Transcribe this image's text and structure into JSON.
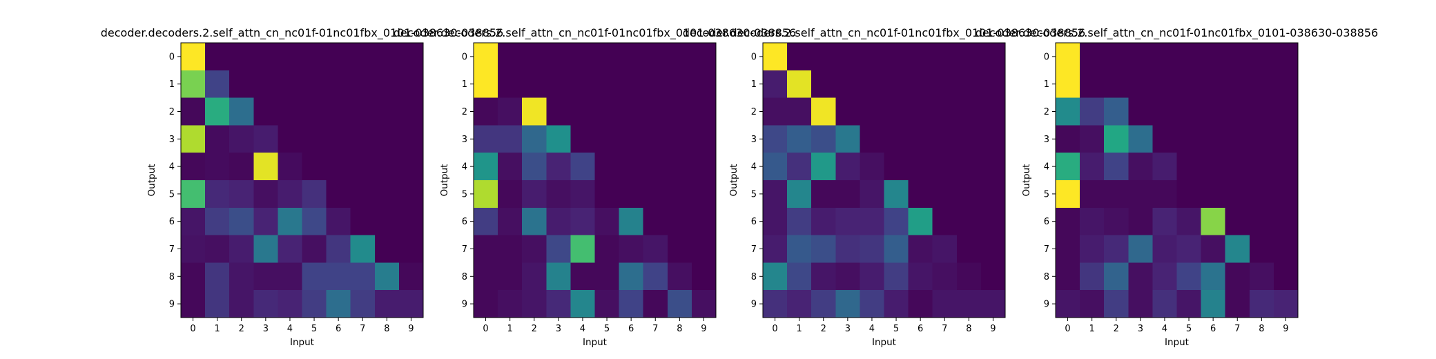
{
  "figure": {
    "background": "#ffffff"
  },
  "chart_data": [
    {
      "type": "heatmap",
      "title": "decoder.decoders.2.self_attn_cn_nc01f-01nc01fbx_0101-038630-038856",
      "xlabel": "Input",
      "ylabel": "Output",
      "x_ticks": [
        "0",
        "1",
        "2",
        "3",
        "4",
        "5",
        "6",
        "7",
        "8",
        "9"
      ],
      "y_ticks": [
        "0",
        "1",
        "2",
        "3",
        "4",
        "5",
        "6",
        "7",
        "8",
        "9"
      ],
      "colormap": "viridis",
      "values": [
        [
          1.0,
          0.0,
          0.0,
          0.0,
          0.0,
          0.0,
          0.0,
          0.0,
          0.0,
          0.0
        ],
        [
          0.8,
          0.2,
          0.0,
          0.0,
          0.0,
          0.0,
          0.0,
          0.0,
          0.0,
          0.0
        ],
        [
          0.02,
          0.62,
          0.36,
          0.0,
          0.0,
          0.0,
          0.0,
          0.0,
          0.0,
          0.0
        ],
        [
          0.88,
          0.03,
          0.06,
          0.08,
          0.0,
          0.0,
          0.0,
          0.0,
          0.0,
          0.0
        ],
        [
          0.02,
          0.03,
          0.02,
          0.96,
          0.03,
          0.0,
          0.0,
          0.0,
          0.0,
          0.0
        ],
        [
          0.7,
          0.12,
          0.1,
          0.04,
          0.08,
          0.14,
          0.0,
          0.0,
          0.0,
          0.0
        ],
        [
          0.06,
          0.18,
          0.24,
          0.1,
          0.4,
          0.22,
          0.06,
          0.0,
          0.0,
          0.0
        ],
        [
          0.05,
          0.04,
          0.08,
          0.4,
          0.1,
          0.04,
          0.16,
          0.48,
          0.0,
          0.0
        ],
        [
          0.02,
          0.16,
          0.06,
          0.04,
          0.04,
          0.2,
          0.2,
          0.2,
          0.42,
          0.02
        ],
        [
          0.02,
          0.16,
          0.06,
          0.12,
          0.1,
          0.18,
          0.36,
          0.18,
          0.08,
          0.08
        ]
      ]
    },
    {
      "type": "heatmap",
      "title": "decoder.decoders.2.self_attn_cn_nc01f-01nc01fbx_0101-038630-038856",
      "xlabel": "Input",
      "ylabel": "Output",
      "x_ticks": [
        "0",
        "1",
        "2",
        "3",
        "4",
        "5",
        "6",
        "7",
        "8",
        "9"
      ],
      "y_ticks": [
        "0",
        "1",
        "2",
        "3",
        "4",
        "5",
        "6",
        "7",
        "8",
        "9"
      ],
      "colormap": "viridis",
      "values": [
        [
          1.0,
          0.0,
          0.0,
          0.0,
          0.0,
          0.0,
          0.0,
          0.0,
          0.0,
          0.0
        ],
        [
          1.0,
          0.0,
          0.0,
          0.0,
          0.0,
          0.0,
          0.0,
          0.0,
          0.0,
          0.0
        ],
        [
          0.02,
          0.04,
          0.98,
          0.0,
          0.0,
          0.0,
          0.0,
          0.0,
          0.0,
          0.0
        ],
        [
          0.16,
          0.16,
          0.34,
          0.5,
          0.0,
          0.0,
          0.0,
          0.0,
          0.0,
          0.0
        ],
        [
          0.52,
          0.04,
          0.24,
          0.1,
          0.2,
          0.0,
          0.0,
          0.0,
          0.0,
          0.0
        ],
        [
          0.88,
          0.02,
          0.08,
          0.04,
          0.06,
          0.0,
          0.0,
          0.0,
          0.0,
          0.0
        ],
        [
          0.18,
          0.04,
          0.38,
          0.08,
          0.1,
          0.04,
          0.44,
          0.0,
          0.0,
          0.0
        ],
        [
          0.02,
          0.02,
          0.04,
          0.22,
          0.7,
          0.02,
          0.04,
          0.06,
          0.0,
          0.0
        ],
        [
          0.02,
          0.02,
          0.06,
          0.44,
          0.02,
          0.02,
          0.36,
          0.2,
          0.04,
          0.0
        ],
        [
          0.02,
          0.04,
          0.06,
          0.12,
          0.46,
          0.04,
          0.2,
          0.02,
          0.24,
          0.04
        ]
      ]
    },
    {
      "type": "heatmap",
      "title": "decoder.decoders.2.self_attn_cn_nc01f-01nc01fbx_0101-038630-038856",
      "xlabel": "Input",
      "ylabel": "Output",
      "x_ticks": [
        "0",
        "1",
        "2",
        "3",
        "4",
        "5",
        "6",
        "7",
        "8",
        "9"
      ],
      "y_ticks": [
        "0",
        "1",
        "2",
        "3",
        "4",
        "5",
        "6",
        "7",
        "8",
        "9"
      ],
      "colormap": "viridis",
      "values": [
        [
          1.0,
          0.0,
          0.0,
          0.0,
          0.0,
          0.0,
          0.0,
          0.0,
          0.0,
          0.0
        ],
        [
          0.08,
          0.96,
          0.0,
          0.0,
          0.0,
          0.0,
          0.0,
          0.0,
          0.0,
          0.0
        ],
        [
          0.04,
          0.04,
          0.98,
          0.0,
          0.0,
          0.0,
          0.0,
          0.0,
          0.0,
          0.0
        ],
        [
          0.22,
          0.3,
          0.24,
          0.4,
          0.0,
          0.0,
          0.0,
          0.0,
          0.0,
          0.0
        ],
        [
          0.28,
          0.14,
          0.54,
          0.08,
          0.04,
          0.0,
          0.0,
          0.0,
          0.0,
          0.0
        ],
        [
          0.06,
          0.46,
          0.02,
          0.02,
          0.06,
          0.46,
          0.0,
          0.0,
          0.0,
          0.0
        ],
        [
          0.06,
          0.18,
          0.08,
          0.1,
          0.1,
          0.2,
          0.56,
          0.0,
          0.0,
          0.0
        ],
        [
          0.08,
          0.28,
          0.24,
          0.14,
          0.16,
          0.3,
          0.04,
          0.06,
          0.0,
          0.0
        ],
        [
          0.46,
          0.22,
          0.06,
          0.04,
          0.08,
          0.18,
          0.06,
          0.04,
          0.02,
          0.0
        ],
        [
          0.14,
          0.1,
          0.18,
          0.34,
          0.18,
          0.08,
          0.02,
          0.06,
          0.06,
          0.06
        ]
      ]
    },
    {
      "type": "heatmap",
      "title": "decoder.decoders.2.self_attn_cn_nc01f-01nc01fbx_0101-038630-038856",
      "xlabel": "Input",
      "ylabel": "Output",
      "x_ticks": [
        "0",
        "1",
        "2",
        "3",
        "4",
        "5",
        "6",
        "7",
        "8",
        "9"
      ],
      "y_ticks": [
        "0",
        "1",
        "2",
        "3",
        "4",
        "5",
        "6",
        "7",
        "8",
        "9"
      ],
      "colormap": "viridis",
      "values": [
        [
          1.0,
          0.0,
          0.0,
          0.0,
          0.0,
          0.0,
          0.0,
          0.0,
          0.0,
          0.0
        ],
        [
          1.0,
          0.0,
          0.0,
          0.0,
          0.0,
          0.0,
          0.0,
          0.0,
          0.0,
          0.0
        ],
        [
          0.48,
          0.18,
          0.3,
          0.0,
          0.0,
          0.0,
          0.0,
          0.0,
          0.0,
          0.0
        ],
        [
          0.02,
          0.04,
          0.6,
          0.36,
          0.0,
          0.0,
          0.0,
          0.0,
          0.0,
          0.0
        ],
        [
          0.62,
          0.08,
          0.2,
          0.04,
          0.08,
          0.0,
          0.0,
          0.0,
          0.0,
          0.0
        ],
        [
          1.0,
          0.02,
          0.02,
          0.02,
          0.02,
          0.0,
          0.0,
          0.0,
          0.0,
          0.0
        ],
        [
          0.02,
          0.06,
          0.04,
          0.02,
          0.1,
          0.06,
          0.82,
          0.0,
          0.0,
          0.0
        ],
        [
          0.02,
          0.08,
          0.12,
          0.34,
          0.08,
          0.1,
          0.04,
          0.46,
          0.0,
          0.0
        ],
        [
          0.02,
          0.16,
          0.32,
          0.04,
          0.1,
          0.2,
          0.38,
          0.02,
          0.04,
          0.0
        ],
        [
          0.06,
          0.04,
          0.18,
          0.04,
          0.14,
          0.06,
          0.44,
          0.02,
          0.12,
          0.1
        ]
      ]
    }
  ]
}
